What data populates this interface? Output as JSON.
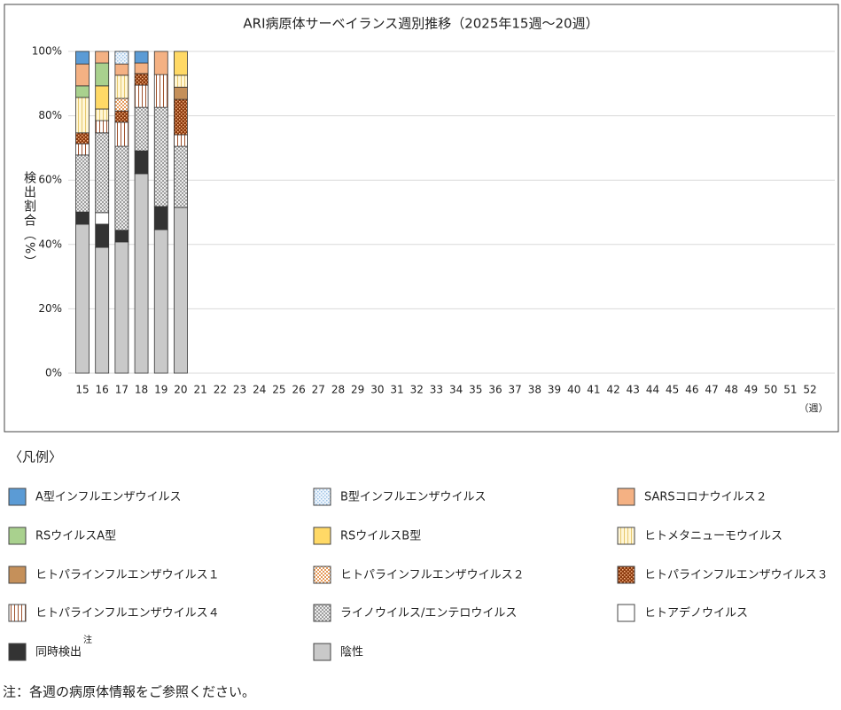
{
  "chart_data": {
    "type": "stacked_bar",
    "title": "ARI病原体サーベイランス週別推移（2025年15週～20週）",
    "y_label": "検出割合（%）",
    "x_unit": "（週）",
    "legend_title": "〈凡例〉",
    "footnote": "注：各週の病原体情報をご参照ください。",
    "categories": [
      "15",
      "16",
      "17",
      "18",
      "19",
      "20",
      "21",
      "22",
      "23",
      "24",
      "25",
      "26",
      "27",
      "28",
      "29",
      "30",
      "31",
      "32",
      "33",
      "34",
      "35",
      "36",
      "37",
      "38",
      "39",
      "40",
      "41",
      "42",
      "43",
      "44",
      "45",
      "46",
      "47",
      "48",
      "49",
      "50",
      "51",
      "52"
    ],
    "ylim": [
      0,
      100
    ],
    "yticks": [
      {
        "value": 0,
        "label": "0%"
      },
      {
        "value": 20,
        "label": "20%"
      },
      {
        "value": 40,
        "label": "40%"
      },
      {
        "value": 60,
        "label": "60%"
      },
      {
        "value": 80,
        "label": "80%"
      },
      {
        "value": 100,
        "label": "100%"
      }
    ],
    "grid": true,
    "series": [
      {
        "name": "A型インフルエンザウイルス",
        "color": "#5b9bd5",
        "pattern": "solid",
        "values": [
          3.9,
          0,
          0,
          3.6,
          0,
          0,
          null,
          null,
          null,
          null,
          null,
          null,
          null,
          null,
          null,
          null,
          null,
          null,
          null,
          null,
          null,
          null,
          null,
          null,
          null,
          null,
          null,
          null,
          null,
          null,
          null,
          null,
          null,
          null,
          null,
          null,
          null,
          null
        ]
      },
      {
        "name": "B型インフルエンザウイルス",
        "color": "#9dc3e6",
        "background": "#eef5fc",
        "pattern": "dots",
        "values": [
          0,
          0,
          3.9,
          0,
          0,
          0,
          null,
          null,
          null,
          null,
          null,
          null,
          null,
          null,
          null,
          null,
          null,
          null,
          null,
          null,
          null,
          null,
          null,
          null,
          null,
          null,
          null,
          null,
          null,
          null,
          null,
          null,
          null,
          null,
          null,
          null,
          null,
          null
        ]
      },
      {
        "name": "SARSコロナウイルス２",
        "color": "#f4b183",
        "pattern": "solid",
        "values": [
          6.8,
          3.6,
          3.5,
          3.3,
          7.2,
          0,
          null,
          null,
          null,
          null,
          null,
          null,
          null,
          null,
          null,
          null,
          null,
          null,
          null,
          null,
          null,
          null,
          null,
          null,
          null,
          null,
          null,
          null,
          null,
          null,
          null,
          null,
          null,
          null,
          null,
          null,
          null,
          null
        ]
      },
      {
        "name": "RSウイルスA型",
        "color": "#a9d18e",
        "pattern": "solid",
        "values": [
          3.6,
          7.1,
          0,
          0,
          0,
          0,
          null,
          null,
          null,
          null,
          null,
          null,
          null,
          null,
          null,
          null,
          null,
          null,
          null,
          null,
          null,
          null,
          null,
          null,
          null,
          null,
          null,
          null,
          null,
          null,
          null,
          null,
          null,
          null,
          null,
          null,
          null,
          null
        ]
      },
      {
        "name": "RSウイルスB型",
        "color": "#ffd966",
        "pattern": "solid",
        "values": [
          0,
          7.2,
          0,
          0,
          0,
          7.4,
          null,
          null,
          null,
          null,
          null,
          null,
          null,
          null,
          null,
          null,
          null,
          null,
          null,
          null,
          null,
          null,
          null,
          null,
          null,
          null,
          null,
          null,
          null,
          null,
          null,
          null,
          null,
          null,
          null,
          null,
          null,
          null
        ]
      },
      {
        "name": "ヒトメタニューモウイルス",
        "color": "#e6c86e",
        "background": "#fff6d5",
        "pattern": "vlines",
        "values": [
          11,
          3.6,
          7.2,
          0,
          0,
          3.7,
          null,
          null,
          null,
          null,
          null,
          null,
          null,
          null,
          null,
          null,
          null,
          null,
          null,
          null,
          null,
          null,
          null,
          null,
          null,
          null,
          null,
          null,
          null,
          null,
          null,
          null,
          null,
          null,
          null,
          null,
          null,
          null
        ]
      },
      {
        "name": "ヒトパラインフルエンザウイルス１",
        "color": "#c5905a",
        "pattern": "solid",
        "values": [
          0,
          0,
          0,
          0,
          0,
          3.8,
          null,
          null,
          null,
          null,
          null,
          null,
          null,
          null,
          null,
          null,
          null,
          null,
          null,
          null,
          null,
          null,
          null,
          null,
          null,
          null,
          null,
          null,
          null,
          null,
          null,
          null,
          null,
          null,
          null,
          null,
          null,
          null
        ]
      },
      {
        "name": "ヒトパラインフルエンザウイルス２",
        "color": "#e59a5a",
        "background": "#ffffff",
        "pattern": "checker",
        "values": [
          0,
          0,
          3.9,
          0,
          0,
          0,
          null,
          null,
          null,
          null,
          null,
          null,
          null,
          null,
          null,
          null,
          null,
          null,
          null,
          null,
          null,
          null,
          null,
          null,
          null,
          null,
          null,
          null,
          null,
          null,
          null,
          null,
          null,
          null,
          null,
          null,
          null,
          null
        ]
      },
      {
        "name": "ヒトパラインフルエンザウイルス３",
        "color": "#f4b183",
        "background": "#8b3a0e",
        "pattern": "dots",
        "values": [
          3.4,
          0,
          3.5,
          3.6,
          0,
          11,
          null,
          null,
          null,
          null,
          null,
          null,
          null,
          null,
          null,
          null,
          null,
          null,
          null,
          null,
          null,
          null,
          null,
          null,
          null,
          null,
          null,
          null,
          null,
          null,
          null,
          null,
          null,
          null,
          null,
          null,
          null,
          null
        ]
      },
      {
        "name": "ヒトパラインフルエンザウイルス４",
        "color": "#a0522d",
        "background": "#ffffff",
        "pattern": "vlines",
        "values": [
          3.5,
          3.8,
          7.5,
          6.9,
          10.2,
          3.6,
          null,
          null,
          null,
          null,
          null,
          null,
          null,
          null,
          null,
          null,
          null,
          null,
          null,
          null,
          null,
          null,
          null,
          null,
          null,
          null,
          null,
          null,
          null,
          null,
          null,
          null,
          null,
          null,
          null,
          null,
          null,
          null
        ]
      },
      {
        "name": "ライノウイルス/エンテロウイルス",
        "color": "#8c8c8c",
        "background": "#ffffff",
        "pattern": "crosshatch",
        "values": [
          17.7,
          24.8,
          26.1,
          13.5,
          30.8,
          19,
          null,
          null,
          null,
          null,
          null,
          null,
          null,
          null,
          null,
          null,
          null,
          null,
          null,
          null,
          null,
          null,
          null,
          null,
          null,
          null,
          null,
          null,
          null,
          null,
          null,
          null,
          null,
          null,
          null,
          null,
          null,
          null
        ]
      },
      {
        "name": "ヒトアデノウイルス",
        "color": "#ffffff",
        "pattern": "solid",
        "values": [
          0,
          3.6,
          0,
          0,
          0,
          0,
          null,
          null,
          null,
          null,
          null,
          null,
          null,
          null,
          null,
          null,
          null,
          null,
          null,
          null,
          null,
          null,
          null,
          null,
          null,
          null,
          null,
          null,
          null,
          null,
          null,
          null,
          null,
          null,
          null,
          null,
          null,
          null
        ]
      },
      {
        "name": "同時検出",
        "note_mark": "注",
        "color": "#333333",
        "pattern": "solid",
        "values": [
          3.8,
          7.2,
          3.6,
          7.1,
          7.2,
          0,
          null,
          null,
          null,
          null,
          null,
          null,
          null,
          null,
          null,
          null,
          null,
          null,
          null,
          null,
          null,
          null,
          null,
          null,
          null,
          null,
          null,
          null,
          null,
          null,
          null,
          null,
          null,
          null,
          null,
          null,
          null,
          null
        ]
      },
      {
        "name": "陰性",
        "color": "#c9c9c9",
        "pattern": "solid",
        "values": [
          46.3,
          39.1,
          40.8,
          62,
          44.6,
          51.5,
          null,
          null,
          null,
          null,
          null,
          null,
          null,
          null,
          null,
          null,
          null,
          null,
          null,
          null,
          null,
          null,
          null,
          null,
          null,
          null,
          null,
          null,
          null,
          null,
          null,
          null,
          null,
          null,
          null,
          null,
          null,
          null
        ]
      }
    ]
  }
}
